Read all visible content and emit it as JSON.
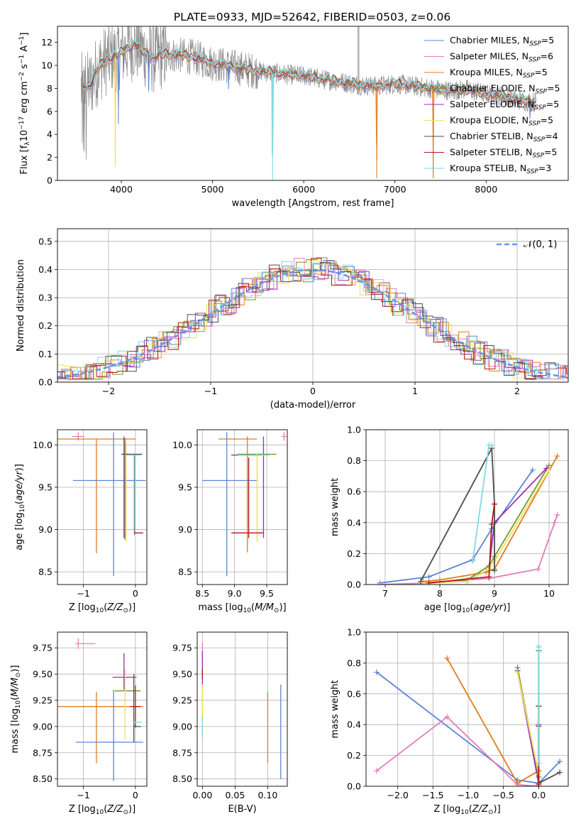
{
  "figure_title": "PLATE=0933, MJD=52642, FIBERID=0503, z=0.06",
  "series_colors": {
    "Chabrier MILES": "#5b86d6",
    "Salpeter MILES": "#e47cbd",
    "Kroupa MILES": "#e07b1f",
    "Chabrier ELODIE": "#6f9a2a",
    "Salpeter ELODIE": "#9b2db5",
    "Kroupa ELODIE": "#f0e05a",
    "Chabrier STELIB": "#4d4d4d",
    "Salpeter STELIB": "#b01818",
    "Kroupa STELIB": "#7fdbe0",
    "data": "#888888",
    "normal": "#6495ed"
  },
  "chart_data": [
    {
      "id": "spectrum",
      "type": "line",
      "title": "PLATE=0933, MJD=52642, FIBERID=0503, z=0.06",
      "xlabel": "wavelength [Angstrom, rest frame]",
      "ylabel": "Flux [f_λ10^-17 erg cm^-2 s^-1 A^-1]",
      "xlim": [
        3300,
        8900
      ],
      "ylim": [
        0,
        13.4
      ],
      "xticks": [
        4000,
        5000,
        6000,
        7000,
        8000
      ],
      "yticks": [
        0,
        2,
        4,
        6,
        8,
        10,
        12
      ],
      "grid": false,
      "legend_position": "top-right",
      "legend": [
        {
          "name": "Chabrier MILES",
          "nssp": "5"
        },
        {
          "name": "Salpeter MILES",
          "nssp": "6"
        },
        {
          "name": "Kroupa MILES",
          "nssp": "5"
        },
        {
          "name": "Chabrier ELODIE",
          "nssp": "5"
        },
        {
          "name": "Salpeter ELODIE",
          "nssp": "5"
        },
        {
          "name": "Kroupa ELODIE",
          "nssp": "5"
        },
        {
          "name": "Chabrier STELIB",
          "nssp": "4"
        },
        {
          "name": "Salpeter STELIB",
          "nssp": "5"
        },
        {
          "name": "Kroupa STELIB",
          "nssp": "3"
        }
      ],
      "model_continuum": {
        "x": [
          3560,
          3650,
          3750,
          3850,
          3950,
          4050,
          4150,
          4250,
          4350,
          4450,
          4600,
          4800,
          5000,
          5200,
          5400,
          5600,
          5800,
          6000,
          6200,
          6400,
          6600,
          6800,
          7000,
          7200,
          7400,
          7600,
          7800,
          8000,
          8200,
          8400,
          8550
        ],
        "y": [
          8.0,
          8.2,
          9.8,
          10.6,
          10.8,
          11.4,
          11.8,
          11.2,
          10.6,
          11.0,
          10.9,
          10.7,
          10.2,
          9.9,
          9.6,
          9.4,
          9.2,
          9.1,
          8.8,
          8.6,
          8.3,
          8.2,
          8.4,
          8.2,
          8.0,
          7.8,
          7.9,
          7.5,
          7.3,
          6.9,
          6.8
        ]
      },
      "features": [
        {
          "x": 3934,
          "depth": 9.5,
          "series": "Kroupa ELODIE"
        },
        {
          "x": 3968,
          "depth": 6.0,
          "series": "Chabrier MILES"
        },
        {
          "x": 4300,
          "depth": 3.0,
          "series": "Chabrier MILES"
        },
        {
          "x": 5175,
          "depth": 2.0,
          "series": "Chabrier MILES"
        },
        {
          "x": 5658,
          "depth": 9.4,
          "series": "Kroupa STELIB"
        },
        {
          "x": 6800,
          "depth": 8.0,
          "series": "Kroupa MILES"
        },
        {
          "x": 7420,
          "depth": 7.8,
          "series": "Kroupa MILES"
        },
        {
          "x": 8480,
          "depth": 1.5,
          "series": "Chabrier MILES"
        }
      ]
    },
    {
      "id": "residuals",
      "type": "line",
      "xlabel": "(data-model)/error",
      "ylabel": "Normed distribution",
      "xlim": [
        -2.5,
        2.5
      ],
      "ylim": [
        0,
        0.545
      ],
      "xticks": [
        -2,
        -1,
        0,
        1,
        2
      ],
      "yticks": [
        0.0,
        0.1,
        0.2,
        0.3,
        0.4,
        0.5
      ],
      "grid": true,
      "legend_position": "top-right",
      "legend": [
        {
          "name": "𝒩(0, 1)"
        }
      ],
      "normal": {
        "mu": 0,
        "sigma": 1,
        "bin_width": 0.1
      }
    },
    {
      "id": "age-vs-Z",
      "type": "scatter",
      "xlabel": "Z [log10(Z/Z☉)]",
      "ylabel": "age [log10(age/yr)]",
      "xlim": [
        -1.5,
        0.22
      ],
      "ylim": [
        8.35,
        10.18
      ],
      "xticks": [
        -1,
        0
      ],
      "yticks": [
        8.5,
        9.0,
        9.5,
        10.0
      ],
      "grid": true,
      "points": [
        {
          "series": "Salpeter MILES",
          "x": -1.1,
          "xerr": 0.12,
          "y": 10.1,
          "yerr": 0.05
        },
        {
          "series": "Kroupa MILES",
          "x": -0.75,
          "xerr": [
            0.75,
            0.75
          ],
          "y": 10.07,
          "yerr": 0.0
        },
        {
          "series": "Kroupa MILES",
          "x": -0.75,
          "xerr": 0.0,
          "y": 10.07,
          "yerr": [
            1.35,
            0.0
          ]
        },
        {
          "series": "Chabrier MILES",
          "x": -0.42,
          "xerr": 0.0,
          "y": 9.3,
          "yerr": [
            0.85,
            0.85
          ]
        },
        {
          "series": "Chabrier MILES",
          "x": -0.5,
          "xerr": [
            0.7,
            0.7
          ],
          "y": 9.58,
          "yerr": 0.0
        },
        {
          "series": "Salpeter ELODIE",
          "x": -0.22,
          "xerr": 0.0,
          "y": 9.5,
          "yerr": [
            0.6,
            0.6
          ]
        },
        {
          "series": "Chabrier ELODIE",
          "x": -0.2,
          "xerr": 0.0,
          "y": 9.5,
          "yerr": [
            0.62,
            0.58
          ]
        },
        {
          "series": "Kroupa ELODIE",
          "x": -0.18,
          "xerr": 0.0,
          "y": 9.45,
          "yerr": [
            0.6,
            0.58
          ]
        },
        {
          "series": "Chabrier STELIB",
          "x": -0.02,
          "xerr": [
            0.25,
            0.15
          ],
          "y": 9.89,
          "yerr": [
            0.95,
            0.0
          ]
        },
        {
          "series": "Kroupa STELIB",
          "x": -0.01,
          "xerr": [
            0.2,
            0.12
          ],
          "y": 9.88,
          "yerr": [
            0.95,
            0.0
          ]
        },
        {
          "series": "Salpeter STELIB",
          "x": 0.03,
          "xerr": [
            0.05,
            0.12
          ],
          "y": 8.96,
          "yerr": 0.0
        }
      ]
    },
    {
      "id": "age-vs-mass",
      "type": "scatter",
      "xlabel": "mass [log10(M/M☉)]",
      "ylabel": "",
      "xlim": [
        8.42,
        9.82
      ],
      "ylim": [
        8.35,
        10.18
      ],
      "xticks": [
        8.5,
        9.0,
        9.5
      ],
      "yticks": [
        8.5,
        9.0,
        9.5,
        10.0
      ],
      "grid": true,
      "points": [
        {
          "series": "Kroupa MILES",
          "x": 9.05,
          "xerr": [
            0.3,
            0.3
          ],
          "y": 10.07,
          "yerr": 0.0
        },
        {
          "series": "Kroupa MILES",
          "x": 9.2,
          "xerr": 0.0,
          "y": 9.5,
          "yerr": [
            0.77,
            0.6
          ]
        },
        {
          "series": "Chabrier MILES",
          "x": 8.88,
          "xerr": 0.0,
          "y": 9.3,
          "yerr": [
            0.85,
            0.85
          ]
        },
        {
          "series": "Chabrier MILES",
          "x": 8.7,
          "xerr": [
            0.2,
            0.66
          ],
          "y": 9.58,
          "yerr": 0.0
        },
        {
          "series": "Salpeter MILES",
          "x": 9.77,
          "xerr": 0.04,
          "y": 10.1,
          "yerr": 0.05
        },
        {
          "series": "Salpeter ELODIE",
          "x": 9.45,
          "xerr": 0.0,
          "y": 9.5,
          "yerr": [
            0.6,
            0.6
          ]
        },
        {
          "series": "Chabrier ELODIE",
          "x": 9.35,
          "xerr": [
            0.3,
            0.3
          ],
          "y": 9.89,
          "yerr": 0.0
        },
        {
          "series": "Kroupa ELODIE",
          "x": 9.35,
          "xerr": 0.0,
          "y": 9.45,
          "yerr": [
            0.6,
            0.45
          ]
        },
        {
          "series": "Salpeter STELIB",
          "x": 9.22,
          "xerr": 0.0,
          "y": 9.5,
          "yerr": [
            0.6,
            0.35
          ]
        },
        {
          "series": "Salpeter STELIB",
          "x": 9.2,
          "xerr": [
            0.25,
            0.25
          ],
          "y": 8.96,
          "yerr": 0.0
        },
        {
          "series": "Chabrier STELIB",
          "x": 9.15,
          "xerr": [
            0.2,
            0.25
          ],
          "y": 9.88,
          "yerr": 0.0
        },
        {
          "series": "Kroupa STELIB",
          "x": 9.3,
          "xerr": [
            0.25,
            0.25
          ],
          "y": 9.88,
          "yerr": 0.0
        }
      ]
    },
    {
      "id": "massweight-vs-age",
      "type": "line",
      "xlabel": "age [log10(age/yr)]",
      "ylabel": "mass weight",
      "xlim": [
        6.65,
        10.35
      ],
      "ylim": [
        0,
        1
      ],
      "xticks": [
        7,
        8,
        9,
        10
      ],
      "yticks": [
        0.0,
        0.2,
        0.4,
        0.6,
        0.8,
        1.0
      ],
      "grid": true,
      "series": [
        {
          "name": "Chabrier MILES",
          "x": [
            6.9,
            7.8,
            8.6,
            8.95,
            9.7
          ],
          "y": [
            0.01,
            0.05,
            0.16,
            0.36,
            0.74
          ]
        },
        {
          "name": "Salpeter MILES",
          "x": [
            6.9,
            7.8,
            8.9,
            9.8,
            10.1,
            10.15
          ],
          "y": [
            0.0,
            0.01,
            0.04,
            0.1,
            0.4,
            0.45
          ]
        },
        {
          "name": "Kroupa MILES",
          "x": [
            7.7,
            8.0,
            8.85,
            9.0,
            10.15
          ],
          "y": [
            0.02,
            0.03,
            0.08,
            0.1,
            0.83
          ]
        },
        {
          "name": "Chabrier ELODIE",
          "x": [
            7.7,
            8.5,
            8.9,
            9.0,
            10.0
          ],
          "y": [
            0.01,
            0.03,
            0.12,
            0.18,
            0.77
          ]
        },
        {
          "name": "Salpeter ELODIE",
          "x": [
            7.7,
            8.5,
            8.9,
            9.0,
            9.95
          ],
          "y": [
            0.01,
            0.02,
            0.1,
            0.4,
            0.75
          ]
        },
        {
          "name": "Kroupa ELODIE",
          "x": [
            7.7,
            8.5,
            8.9,
            9.0,
            10.0
          ],
          "y": [
            0.01,
            0.02,
            0.1,
            0.15,
            0.74
          ]
        },
        {
          "name": "Chabrier STELIB",
          "x": [
            7.65,
            8.95,
            9.0,
            9.0
          ],
          "y": [
            0.02,
            0.88,
            0.52,
            0.09
          ]
        },
        {
          "name": "Salpeter STELIB",
          "x": [
            7.8,
            8.9,
            8.95,
            9.0
          ],
          "y": [
            0.01,
            0.05,
            0.39,
            0.52
          ]
        },
        {
          "name": "Kroupa STELIB",
          "x": [
            8.6,
            8.9,
            8.95
          ],
          "y": [
            0.15,
            0.9,
            0.9
          ]
        }
      ]
    },
    {
      "id": "mass-vs-Z",
      "type": "scatter",
      "xlabel": "Z [log10(Z/Z☉)]",
      "ylabel": "mass [log10(M/M☉)]",
      "xlim": [
        -1.5,
        0.22
      ],
      "ylim": [
        8.43,
        9.9
      ],
      "xticks": [
        -1,
        0
      ],
      "yticks": [
        8.5,
        8.75,
        9.0,
        9.25,
        9.5,
        9.75
      ],
      "grid": true,
      "points": [
        {
          "series": "Salpeter MILES",
          "x": -1.1,
          "xerr": [
            0.05,
            0.33
          ],
          "y": 9.79,
          "yerr": 0.05
        },
        {
          "series": "Kroupa MILES",
          "x": -0.75,
          "xerr": [
            0.75,
            0.9
          ],
          "y": 9.19,
          "yerr": 0.0
        },
        {
          "series": "Kroupa MILES",
          "x": -0.75,
          "xerr": 0.0,
          "y": 9.0,
          "yerr": [
            0.35,
            0.33
          ]
        },
        {
          "series": "Chabrier MILES",
          "x": -0.42,
          "xerr": 0.0,
          "y": 8.9,
          "yerr": [
            0.42,
            0.45
          ]
        },
        {
          "series": "Chabrier MILES",
          "x": -0.5,
          "xerr": [
            0.65,
            0.65
          ],
          "y": 8.85,
          "yerr": 0.0
        },
        {
          "series": "Salpeter ELODIE",
          "x": -0.22,
          "xerr": 0.0,
          "y": 9.45,
          "yerr": [
            0.1,
            0.25
          ]
        },
        {
          "series": "Salpeter ELODIE",
          "x": -0.22,
          "xerr": [
            0.22,
            0.24
          ],
          "y": 9.47,
          "yerr": 0.0
        },
        {
          "series": "Chabrier ELODIE",
          "x": -0.2,
          "xerr": [
            0.2,
            0.3
          ],
          "y": 9.34,
          "yerr": 0.0
        },
        {
          "series": "Kroupa ELODIE",
          "x": -0.2,
          "xerr": 0.0,
          "y": 9.3,
          "yerr": [
            0.42,
            0.25
          ]
        },
        {
          "series": "Chabrier STELIB",
          "x": -0.03,
          "xerr": 0.0,
          "y": 9.2,
          "yerr": [
            0.35,
            0.3
          ]
        },
        {
          "series": "Salpeter STELIB",
          "x": 0.0,
          "xerr": [
            0.1,
            0.1
          ],
          "y": 9.19,
          "yerr": [
            0.2,
            0.2
          ]
        },
        {
          "series": "Kroupa STELIB",
          "x": 0.01,
          "xerr": [
            0.05,
            0.12
          ],
          "y": 9.04,
          "yerr": 0.0
        },
        {
          "series": "Chabrier STELIB",
          "x": 0.01,
          "xerr": [
            0.04,
            0.1
          ],
          "y": 9.0,
          "yerr": 0.0
        }
      ]
    },
    {
      "id": "mass-vs-ebv",
      "type": "scatter",
      "xlabel": "E(B-V)",
      "ylabel": "",
      "xlim": [
        -0.008,
        0.13
      ],
      "ylim": [
        8.43,
        9.9
      ],
      "xticks": [
        0.0,
        0.05,
        0.1
      ],
      "yticks": [
        8.5,
        8.75,
        9.0,
        9.25,
        9.5,
        9.75
      ],
      "grid": true,
      "points": [
        {
          "series": "Salpeter MILES",
          "x": 0.0,
          "xerr": 0.0,
          "y": 9.65,
          "yerr": [
            0.15,
            0.15
          ]
        },
        {
          "series": "Salpeter ELODIE",
          "x": 0.0,
          "xerr": 0.0,
          "y": 9.47,
          "yerr": [
            0.1,
            0.25
          ]
        },
        {
          "series": "Salpeter STELIB",
          "x": 0.0,
          "xerr": 0.0,
          "y": 9.5,
          "yerr": [
            0.05,
            0.05
          ]
        },
        {
          "series": "Chabrier ELODIE",
          "x": 0.0,
          "xerr": 0.0,
          "y": 9.2,
          "yerr": [
            0.3,
            0.2
          ]
        },
        {
          "series": "Kroupa ELODIE",
          "x": 0.0,
          "xerr": 0.0,
          "y": 9.1,
          "yerr": [
            0.2,
            0.3
          ]
        },
        {
          "series": "Kroupa STELIB",
          "x": 0.0,
          "xerr": 0.0,
          "y": 9.0,
          "yerr": [
            0.1,
            0.1
          ]
        },
        {
          "series": "Kroupa MILES",
          "x": 0.1,
          "xerr": 0.0,
          "y": 9.0,
          "yerr": [
            0.35,
            0.33
          ]
        },
        {
          "series": "Chabrier MILES",
          "x": 0.12,
          "xerr": 0.0,
          "y": 8.95,
          "yerr": [
            0.45,
            0.45
          ]
        }
      ]
    },
    {
      "id": "massweight-vs-Z",
      "type": "line",
      "xlabel": "Z [log10(Z/Z☉)]",
      "ylabel": "mass weight",
      "xlim": [
        -2.45,
        0.42
      ],
      "ylim": [
        0,
        1
      ],
      "xticks": [
        -2.0,
        -1.5,
        -1.0,
        -0.5,
        0.0
      ],
      "yticks": [
        0.0,
        0.2,
        0.4,
        0.6,
        0.8,
        1.0
      ],
      "grid": true,
      "series": [
        {
          "name": "Chabrier MILES",
          "x": [
            -2.3,
            -0.3,
            0.0,
            0.3
          ],
          "y": [
            0.74,
            0.04,
            0.02,
            0.16
          ]
        },
        {
          "name": "Salpeter MILES",
          "x": [
            -2.3,
            -1.3,
            -0.3,
            0.0
          ],
          "y": [
            0.1,
            0.45,
            0.01,
            0.0
          ]
        },
        {
          "name": "Kroupa MILES",
          "x": [
            -1.3,
            -0.3,
            0.0,
            0.0
          ],
          "y": [
            0.83,
            0.02,
            0.1,
            0.15
          ]
        },
        {
          "name": "Chabrier ELODIE",
          "x": [
            -0.3,
            0.0,
            0.0
          ],
          "y": [
            0.77,
            0.06,
            0.1
          ]
        },
        {
          "name": "Salpeter ELODIE",
          "x": [
            -0.3,
            0.0,
            0.0
          ],
          "y": [
            0.75,
            0.02,
            0.4
          ]
        },
        {
          "name": "Kroupa ELODIE",
          "x": [
            -0.3,
            0.0,
            0.0
          ],
          "y": [
            0.74,
            0.08,
            0.15
          ]
        },
        {
          "name": "Chabrier STELIB",
          "x": [
            0.0,
            0.0,
            0.0,
            0.3
          ],
          "y": [
            0.88,
            0.52,
            0.02,
            0.09
          ]
        },
        {
          "name": "Salpeter STELIB",
          "x": [
            0.0,
            0.0,
            0.0
          ],
          "y": [
            0.39,
            0.52,
            0.01
          ]
        },
        {
          "name": "Kroupa STELIB",
          "x": [
            0.0,
            0.0,
            0.0
          ],
          "y": [
            0.91,
            0.9,
            0.15
          ]
        }
      ]
    }
  ]
}
